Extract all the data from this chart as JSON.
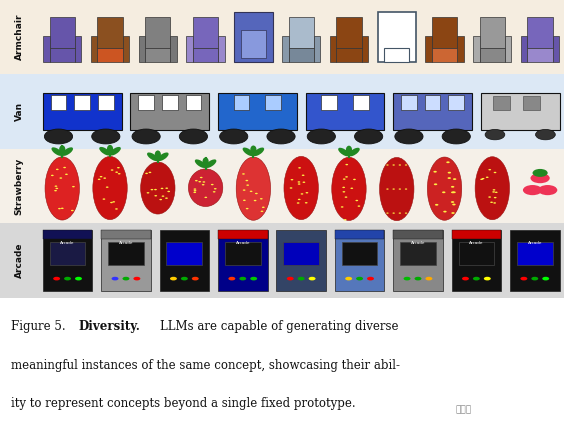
{
  "bg_color": "#fdf6ef",
  "image_bg": "#f5ede0",
  "row_labels": [
    "Armchair",
    "Van",
    "Strawberry",
    "Arcade"
  ],
  "row_bg_colors": [
    "#f5ede0",
    "#e8eef8",
    "#f5f0e8",
    "#e0e0e0"
  ],
  "label_strip_color": "#f0e8d8",
  "caption_line1": "Figure 5.   Diversity.   LLMs are capable of generating diverse",
  "caption_line2": "meaningful instances of the same concept, showcasing their abil-",
  "caption_line3": "ity to represent concepts beyond a single fixed prototype.",
  "caption_bold_word": "Diversity.",
  "watermark": "新智元",
  "n_items_per_row": 11
}
